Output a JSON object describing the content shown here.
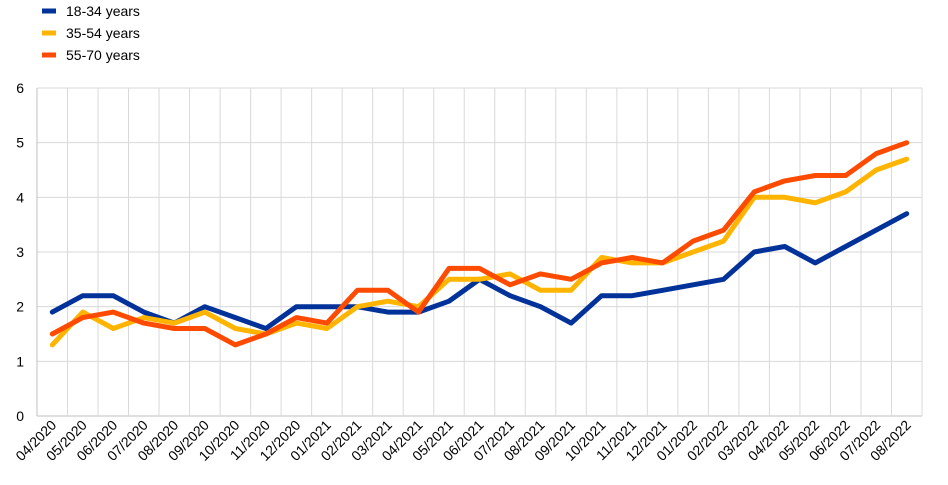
{
  "chart_data": {
    "type": "line",
    "x": [
      "04/2020",
      "05/2020",
      "06/2020",
      "07/2020",
      "08/2020",
      "09/2020",
      "10/2020",
      "11/2020",
      "12/2020",
      "01/2021",
      "02/2021",
      "03/2021",
      "04/2021",
      "05/2021",
      "06/2021",
      "07/2021",
      "08/2021",
      "09/2021",
      "10/2021",
      "11/2021",
      "12/2021",
      "01/2022",
      "02/2022",
      "03/2022",
      "04/2022",
      "05/2022",
      "06/2022",
      "07/2022",
      "08/2022"
    ],
    "series": [
      {
        "name": "18-34 years",
        "color": "#003299",
        "values": [
          1.9,
          2.2,
          2.2,
          1.9,
          1.7,
          2.0,
          1.8,
          1.6,
          2.0,
          2.0,
          2.0,
          1.9,
          1.9,
          2.1,
          2.5,
          2.2,
          2.0,
          1.7,
          2.2,
          2.2,
          2.3,
          2.4,
          2.5,
          3.0,
          3.1,
          2.8,
          3.1,
          3.4,
          3.7
        ]
      },
      {
        "name": "35-54 years",
        "color": "#FFB400",
        "values": [
          1.3,
          1.9,
          1.6,
          1.8,
          1.7,
          1.9,
          1.6,
          1.5,
          1.7,
          1.6,
          2.0,
          2.1,
          2.0,
          2.5,
          2.5,
          2.6,
          2.3,
          2.3,
          2.9,
          2.8,
          2.8,
          3.0,
          3.2,
          4.0,
          4.0,
          3.9,
          4.1,
          4.5,
          4.7
        ]
      },
      {
        "name": "55-70 years",
        "color": "#FF4B00",
        "values": [
          1.5,
          1.8,
          1.9,
          1.7,
          1.6,
          1.6,
          1.3,
          1.5,
          1.8,
          1.7,
          2.3,
          2.3,
          1.9,
          2.7,
          2.7,
          2.4,
          2.6,
          2.5,
          2.8,
          2.9,
          2.8,
          3.2,
          3.4,
          4.1,
          4.3,
          4.4,
          4.4,
          4.8,
          5.0
        ]
      }
    ],
    "yticks": [
      "0",
      "1",
      "2",
      "3",
      "4",
      "5",
      "6"
    ],
    "ylim": [
      0,
      6
    ],
    "grid": true,
    "legend_position": "top-left",
    "title": "",
    "xlabel": "",
    "ylabel": ""
  }
}
